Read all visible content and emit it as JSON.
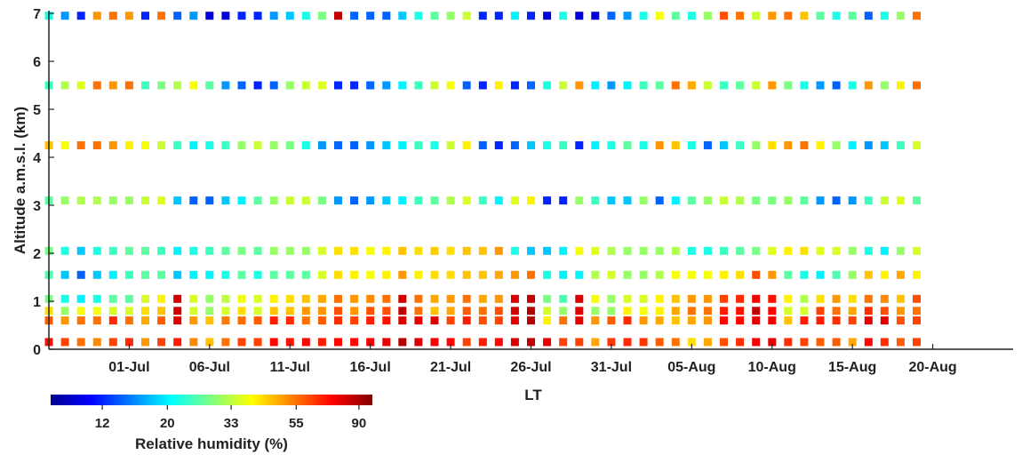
{
  "chart_data": {
    "type": "scatter",
    "title": "",
    "xlabel": "LT",
    "ylabel": "Altitude a.m.s.l. (km)",
    "ylim": [
      0,
      7
    ],
    "yticks": [
      "0",
      "1",
      "2",
      "3",
      "4",
      "5",
      "6",
      "7"
    ],
    "xlim": [
      "2025-06-26",
      "2025-08-25"
    ],
    "xticks": [
      {
        "label": "01-Jul",
        "date": "2025-07-01"
      },
      {
        "label": "06-Jul",
        "date": "2025-07-06"
      },
      {
        "label": "11-Jul",
        "date": "2025-07-11"
      },
      {
        "label": "16-Jul",
        "date": "2025-07-16"
      },
      {
        "label": "21-Jul",
        "date": "2025-07-21"
      },
      {
        "label": "26-Jul",
        "date": "2025-07-26"
      },
      {
        "label": "31-Jul",
        "date": "2025-07-31"
      },
      {
        "label": "05-Aug",
        "date": "2025-08-05"
      },
      {
        "label": "10-Aug",
        "date": "2025-08-10"
      },
      {
        "label": "15-Aug",
        "date": "2025-08-15"
      },
      {
        "label": "20-Aug",
        "date": "2025-08-20"
      }
    ],
    "start_date": "2025-06-26",
    "day_step": 1,
    "levels": [
      {
        "altitude_km": 0.15,
        "humidity_pct": [
          70,
          62,
          55,
          52,
          62,
          66,
          50,
          62,
          68,
          52,
          45,
          55,
          62,
          62,
          72,
          70,
          72,
          68,
          72,
          72,
          75,
          78,
          88,
          80,
          75,
          72,
          62,
          68,
          72,
          80,
          85,
          78,
          62,
          62,
          48,
          64,
          66,
          64,
          58,
          55,
          42,
          48,
          60,
          65,
          75,
          78,
          65,
          62,
          58,
          58,
          48,
          72,
          65,
          58,
          62
        ]
      },
      {
        "altitude_km": 0.6,
        "humidity_pct": [
          58,
          50,
          55,
          55,
          66,
          55,
          48,
          58,
          80,
          50,
          45,
          54,
          56,
          58,
          68,
          66,
          55,
          58,
          65,
          62,
          68,
          70,
          80,
          78,
          80,
          62,
          68,
          60,
          62,
          78,
          88,
          40,
          55,
          78,
          50,
          58,
          66,
          50,
          48,
          45,
          48,
          50,
          72,
          72,
          78,
          75,
          45,
          68,
          68,
          65,
          62,
          78,
          78,
          60,
          62
        ]
      },
      {
        "altitude_km": 0.8,
        "humidity_pct": [
          42,
          30,
          38,
          38,
          35,
          35,
          42,
          45,
          82,
          35,
          30,
          35,
          42,
          35,
          45,
          45,
          50,
          50,
          60,
          50,
          60,
          60,
          85,
          55,
          45,
          48,
          58,
          55,
          60,
          82,
          88,
          35,
          30,
          78,
          30,
          30,
          40,
          38,
          40,
          48,
          55,
          55,
          68,
          70,
          85,
          72,
          35,
          35,
          62,
          55,
          48,
          65,
          60,
          50,
          55
        ]
      },
      {
        "altitude_km": 1.05,
        "humidity_pct": [
          28,
          22,
          20,
          22,
          26,
          26,
          35,
          40,
          82,
          35,
          30,
          33,
          38,
          35,
          40,
          42,
          45,
          48,
          55,
          50,
          52,
          55,
          82,
          55,
          48,
          50,
          55,
          48,
          50,
          80,
          85,
          28,
          25,
          80,
          38,
          30,
          35,
          35,
          40,
          45,
          50,
          50,
          62,
          66,
          75,
          70,
          40,
          32,
          42,
          50,
          42,
          55,
          52,
          45,
          60
        ]
      },
      {
        "altitude_km": 1.55,
        "humidity_pct": [
          25,
          18,
          14,
          18,
          20,
          24,
          26,
          26,
          18,
          20,
          20,
          22,
          26,
          22,
          26,
          26,
          26,
          35,
          42,
          40,
          38,
          40,
          50,
          40,
          42,
          42,
          45,
          45,
          48,
          50,
          55,
          22,
          20,
          20,
          32,
          35,
          30,
          30,
          32,
          38,
          38,
          38,
          40,
          42,
          60,
          50,
          26,
          22,
          20,
          25,
          30,
          45,
          40,
          48,
          40
        ]
      },
      {
        "altitude_km": 2.05,
        "humidity_pct": [
          28,
          22,
          18,
          22,
          24,
          26,
          26,
          24,
          20,
          22,
          24,
          26,
          28,
          26,
          30,
          30,
          30,
          35,
          42,
          42,
          38,
          40,
          45,
          42,
          44,
          42,
          45,
          45,
          50,
          22,
          18,
          18,
          20,
          38,
          36,
          32,
          30,
          30,
          30,
          32,
          22,
          22,
          24,
          26,
          28,
          36,
          40,
          42,
          36,
          35,
          30,
          22,
          20,
          30,
          35
        ]
      },
      {
        "altitude_km": 3.1,
        "humidity_pct": [
          26,
          30,
          32,
          32,
          30,
          30,
          34,
          36,
          18,
          14,
          14,
          18,
          20,
          26,
          30,
          34,
          34,
          28,
          16,
          14,
          16,
          18,
          20,
          24,
          26,
          32,
          35,
          24,
          20,
          36,
          40,
          12,
          12,
          30,
          24,
          18,
          18,
          30,
          14,
          20,
          26,
          30,
          34,
          32,
          28,
          28,
          30,
          26,
          16,
          14,
          16,
          24,
          34,
          36,
          26
        ]
      },
      {
        "altitude_km": 4.25,
        "humidity_pct": [
          45,
          38,
          55,
          55,
          50,
          40,
          38,
          34,
          24,
          20,
          22,
          24,
          30,
          34,
          30,
          28,
          22,
          16,
          14,
          14,
          16,
          18,
          20,
          24,
          22,
          34,
          40,
          14,
          12,
          14,
          18,
          22,
          24,
          12,
          20,
          22,
          26,
          22,
          50,
          45,
          22,
          14,
          18,
          24,
          30,
          42,
          50,
          55,
          40,
          30,
          20,
          16,
          18,
          24,
          35
        ]
      },
      {
        "altitude_km": 5.5,
        "humidity_pct": [
          24,
          32,
          36,
          55,
          50,
          55,
          24,
          28,
          32,
          38,
          26,
          16,
          14,
          12,
          14,
          30,
          34,
          36,
          12,
          12,
          14,
          16,
          20,
          24,
          34,
          38,
          14,
          12,
          40,
          12,
          14,
          22,
          34,
          50,
          20,
          16,
          20,
          24,
          26,
          55,
          48,
          34,
          24,
          26,
          34,
          50,
          28,
          22,
          16,
          14,
          22,
          50,
          30,
          40,
          55
        ]
      },
      {
        "altitude_km": 6.95,
        "humidity_pct": [
          22,
          16,
          12,
          50,
          55,
          50,
          12,
          55,
          14,
          16,
          10,
          10,
          12,
          12,
          16,
          18,
          22,
          28,
          85,
          14,
          14,
          14,
          18,
          22,
          26,
          30,
          34,
          12,
          12,
          20,
          12,
          10,
          22,
          10,
          10,
          14,
          16,
          22,
          38,
          26,
          22,
          30,
          60,
          55,
          34,
          50,
          55,
          45,
          26,
          22,
          26,
          14,
          22,
          30,
          55
        ]
      }
    ],
    "colorbar": {
      "label": "Relative humidity (%)",
      "ticks": [
        "12",
        "20",
        "33",
        "55",
        "90"
      ],
      "range_log": [
        8,
        100
      ],
      "colormap": "jet"
    }
  }
}
